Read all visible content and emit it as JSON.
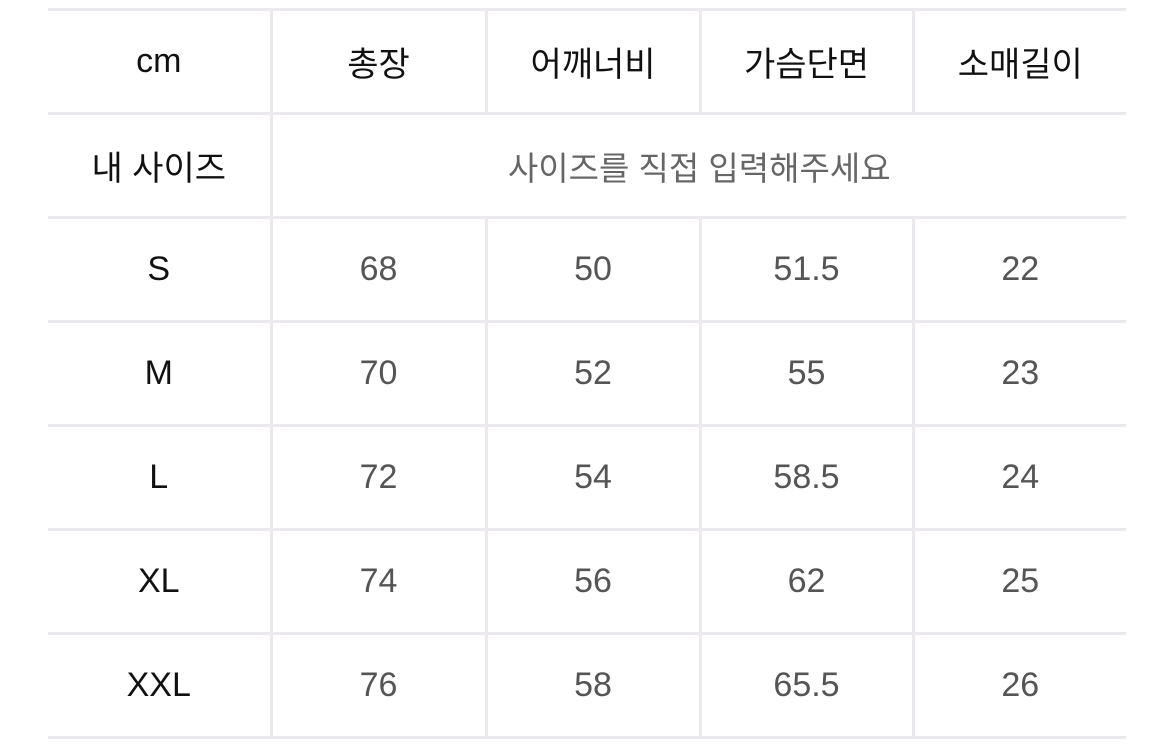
{
  "table": {
    "unit_label": "cm",
    "headers": [
      "총장",
      "어깨너비",
      "가슴단면",
      "소매길이"
    ],
    "my_size": {
      "label": "내 사이즈",
      "placeholder": "사이즈를 직접 입력해주세요"
    },
    "rows": [
      {
        "size": "S",
        "values": [
          "68",
          "50",
          "51.5",
          "22"
        ]
      },
      {
        "size": "M",
        "values": [
          "70",
          "52",
          "55",
          "23"
        ]
      },
      {
        "size": "L",
        "values": [
          "72",
          "54",
          "58.5",
          "24"
        ]
      },
      {
        "size": "XL",
        "values": [
          "74",
          "56",
          "62",
          "25"
        ]
      },
      {
        "size": "XXL",
        "values": [
          "76",
          "58",
          "65.5",
          "26"
        ]
      }
    ]
  }
}
